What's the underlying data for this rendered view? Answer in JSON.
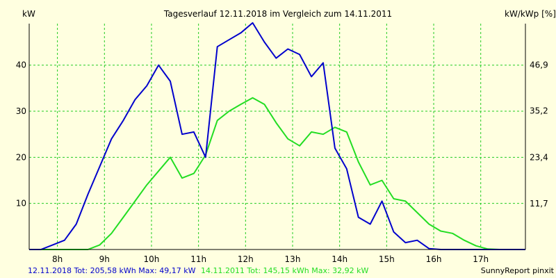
{
  "chart_data": {
    "type": "line",
    "title": "Tagesverlauf 12.11.2018 im Vergleich zum 14.11.2011",
    "ylabel_left": "kW",
    "ylabel_right": "kW/kWp [%]",
    "xlim": [
      7.4,
      17.95
    ],
    "ylim_left": [
      0,
      49
    ],
    "ylim_right": [
      0,
      57.4
    ],
    "x_ticks": [
      8,
      9,
      10,
      11,
      12,
      13,
      14,
      15,
      16,
      17
    ],
    "x_tick_labels": [
      "8h",
      "9h",
      "10h",
      "11h",
      "12h",
      "13h",
      "14h",
      "15h",
      "16h",
      "17h"
    ],
    "y_ticks_left": [
      10,
      20,
      30,
      40
    ],
    "y_tick_labels_left": [
      "10",
      "20",
      "30",
      "40"
    ],
    "y_ticks_right": [
      11.7,
      23.4,
      35.2,
      46.9
    ],
    "y_tick_labels_right": [
      "11,7",
      "23,4",
      "35,2",
      "46,9"
    ],
    "grid": true,
    "series": [
      {
        "name": "12.11.2018",
        "color": "#0000cc",
        "x": [
          7.4,
          7.65,
          7.9,
          8.15,
          8.4,
          8.65,
          8.9,
          9.15,
          9.4,
          9.65,
          9.9,
          10.15,
          10.4,
          10.65,
          10.9,
          11.15,
          11.4,
          11.65,
          11.9,
          12.15,
          12.4,
          12.65,
          12.9,
          13.15,
          13.4,
          13.65,
          13.9,
          14.15,
          14.4,
          14.65,
          14.9,
          15.15,
          15.4,
          15.65,
          15.9,
          16.15,
          16.4,
          16.65,
          16.9,
          17.15,
          17.4,
          17.65,
          17.95
        ],
        "values": [
          0,
          0,
          1,
          2,
          5.5,
          12,
          18,
          24,
          28,
          32.5,
          35.5,
          40,
          36.5,
          25,
          25.5,
          20,
          44,
          45.5,
          47,
          49.17,
          45,
          41.5,
          43.5,
          42.3,
          37.5,
          40.5,
          22,
          17.5,
          7,
          5.5,
          10.5,
          3.8,
          1.5,
          2,
          0.2,
          0,
          0,
          0,
          0,
          0,
          0,
          0,
          0
        ],
        "footer_text": "12.11.2018 Tot: 205,58 kWh Max: 49,17 kW"
      },
      {
        "name": "14.11.2011",
        "color": "#22dd22",
        "x": [
          7.4,
          7.65,
          7.9,
          8.15,
          8.4,
          8.65,
          8.9,
          9.15,
          9.4,
          9.65,
          9.9,
          10.15,
          10.4,
          10.65,
          10.9,
          11.15,
          11.4,
          11.65,
          11.9,
          12.15,
          12.4,
          12.65,
          12.9,
          13.15,
          13.4,
          13.65,
          13.9,
          14.15,
          14.4,
          14.65,
          14.9,
          15.15,
          15.4,
          15.65,
          15.9,
          16.15,
          16.4,
          16.65,
          16.9,
          17.15,
          17.4,
          17.65,
          17.95
        ],
        "values": [
          0,
          0,
          0,
          0,
          0,
          0,
          1,
          3.5,
          7,
          10.5,
          14,
          17,
          20,
          15.5,
          16.5,
          20.5,
          28,
          30,
          31.5,
          32.92,
          31.5,
          27.5,
          24,
          22.5,
          25.5,
          25,
          26.5,
          25.5,
          19,
          14,
          15,
          11,
          10.5,
          8,
          5.5,
          4,
          3.5,
          2,
          0.8,
          0.1,
          0,
          0,
          0
        ],
        "footer_text": "14.11.2011 Tot: 145,15 kWh Max: 32,92 kW"
      }
    ],
    "footer_right": "SunnyReport pinxit"
  }
}
